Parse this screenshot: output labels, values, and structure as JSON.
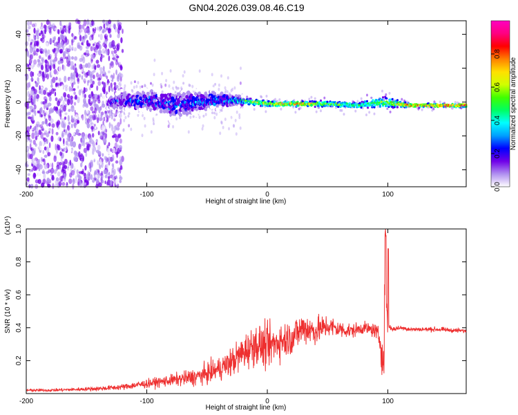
{
  "chart_data": [
    {
      "type": "heatmap",
      "title": "GN04.2026.039.08.46.C19",
      "xlabel": "Height of straight line (km)",
      "ylabel": "Frequency (Hz)",
      "xlim": [
        -200,
        165
      ],
      "ylim": [
        -50,
        48
      ],
      "xticks": [
        -200,
        -100,
        0,
        100
      ],
      "xtick_labels": [
        "-200",
        "-100",
        "0",
        "100"
      ],
      "yticks": [
        -40,
        -20,
        0,
        20,
        40
      ],
      "ytick_labels": [
        "-40",
        "-20",
        "0",
        "20",
        "40"
      ],
      "colorbar": {
        "label": "Normalized spectral amplitude",
        "range": [
          0,
          1
        ],
        "ticks": [
          0.0,
          0.2,
          0.4,
          0.6,
          0.8
        ],
        "tick_labels": [
          "0.0",
          "0.2",
          "0.4",
          "0.6",
          "0.8"
        ],
        "colors": [
          "#ffffff",
          "#b090f0",
          "#7000e8",
          "#0000ff",
          "#00a0ff",
          "#00ffff",
          "#00ff60",
          "#40ff00",
          "#d0ff00",
          "#ffe000",
          "#ff8000",
          "#ff0000",
          "#ff0080",
          "#ff00c0"
        ]
      },
      "ridge": [
        {
          "x": -130,
          "f": 0,
          "spread": 3,
          "amp": 0.3
        },
        {
          "x": -100,
          "f": 1,
          "spread": 5,
          "amp": 0.35
        },
        {
          "x": -75,
          "f": -2,
          "spread": 6,
          "amp": 0.35
        },
        {
          "x": -50,
          "f": 1,
          "spread": 4,
          "amp": 0.4
        },
        {
          "x": -25,
          "f": 1,
          "spread": 2,
          "amp": 0.5
        },
        {
          "x": 0,
          "f": -1,
          "spread": 1.5,
          "amp": 0.75
        },
        {
          "x": 25,
          "f": -1,
          "spread": 1.5,
          "amp": 0.8
        },
        {
          "x": 50,
          "f": -1,
          "spread": 1.5,
          "amp": 0.65
        },
        {
          "x": 75,
          "f": -2,
          "spread": 1.5,
          "amp": 0.55
        },
        {
          "x": 95,
          "f": 0,
          "spread": 3,
          "amp": 0.6
        },
        {
          "x": 120,
          "f": -2,
          "spread": 1,
          "amp": 0.85
        },
        {
          "x": 165,
          "f": -2,
          "spread": 1,
          "amp": 0.95
        }
      ]
    },
    {
      "type": "line",
      "xlabel": "Height of straight line (km)",
      "ylabel": "SNR (10 * v/v)",
      "scale_label": "(x10⁴)",
      "xlim": [
        -200,
        165
      ],
      "ylim": [
        0,
        1.0
      ],
      "xticks": [
        -200,
        -100,
        0,
        100
      ],
      "xtick_labels": [
        "-200",
        "-100",
        "0",
        "100"
      ],
      "yticks": [
        0.2,
        0.4,
        0.6,
        0.8,
        1.0
      ],
      "ytick_labels": [
        "0.2",
        "0.4",
        "0.6",
        "0.8",
        "1.0"
      ],
      "series": [
        {
          "name": "SNR",
          "color": "#ee3030",
          "x": [
            -200,
            -180,
            -160,
            -140,
            -120,
            -110,
            -100,
            -90,
            -80,
            -70,
            -60,
            -50,
            -40,
            -30,
            -20,
            -10,
            0,
            10,
            20,
            30,
            40,
            50,
            60,
            70,
            80,
            90,
            95,
            98,
            100,
            102,
            105,
            110,
            120,
            140,
            165
          ],
          "y": [
            0.02,
            0.02,
            0.025,
            0.03,
            0.04,
            0.05,
            0.06,
            0.07,
            0.08,
            0.09,
            0.1,
            0.12,
            0.15,
            0.19,
            0.25,
            0.3,
            0.28,
            0.32,
            0.34,
            0.4,
            0.38,
            0.41,
            0.39,
            0.38,
            0.4,
            0.38,
            0.3,
            0.65,
            0.42,
            0.4,
            0.39,
            0.4,
            0.39,
            0.39,
            0.38
          ],
          "noise": [
            0.01,
            0.01,
            0.012,
            0.015,
            0.02,
            0.025,
            0.03,
            0.035,
            0.04,
            0.05,
            0.06,
            0.07,
            0.08,
            0.1,
            0.12,
            0.14,
            0.15,
            0.13,
            0.12,
            0.12,
            0.1,
            0.08,
            0.06,
            0.05,
            0.04,
            0.05,
            0.08,
            0.3,
            0.05,
            0.02,
            0.015,
            0.015,
            0.015,
            0.015,
            0.015
          ]
        }
      ]
    }
  ]
}
